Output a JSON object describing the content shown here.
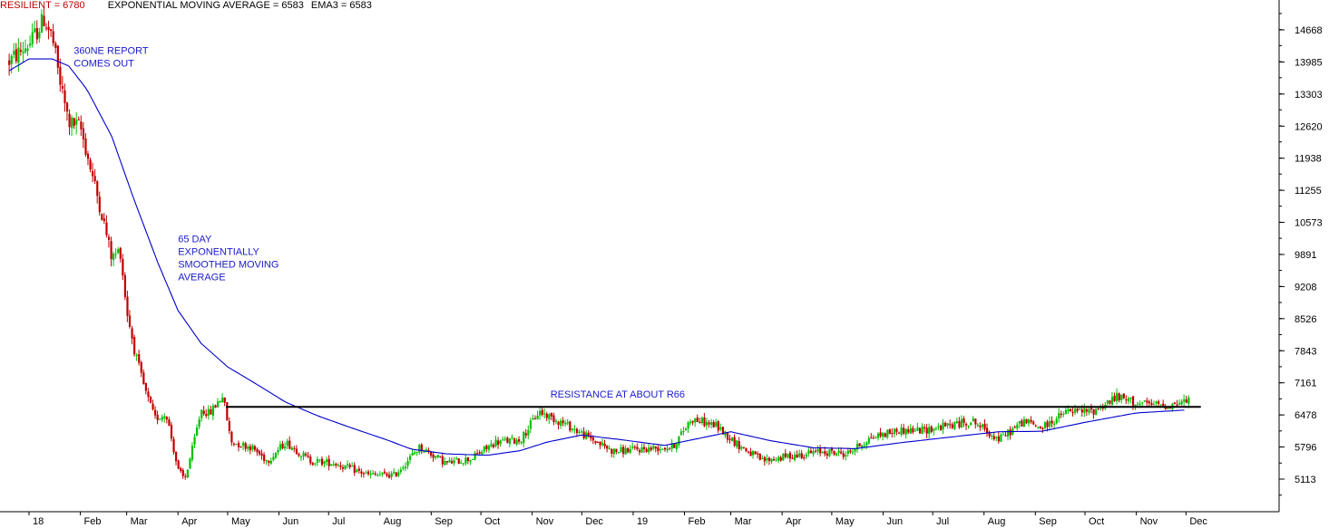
{
  "header": {
    "stock_label": "RESILIENT = 6780",
    "ema_label": "EXPONENTIAL MOVING AVERAGE = 6583",
    "ema3_label": "EMA3 = 6583"
  },
  "colors": {
    "up_candle": "#00c000",
    "down_candle": "#c00000",
    "ema_line": "#0000cc",
    "resistance_line": "#000000",
    "annotation_text": "#1a1acc",
    "header_stock": "#c00000",
    "header_ema": "#000000",
    "header_ema3": "#000000"
  },
  "chart_data": {
    "type": "candlestick",
    "title": "",
    "xlabel": "",
    "ylabel": "",
    "ylim": [
      4800,
      15200
    ],
    "y_ticks": [
      14668,
      13985,
      13303,
      12620,
      11938,
      11255,
      10573,
      9891,
      9208,
      8526,
      7843,
      7161,
      6478,
      5796,
      5113
    ],
    "x_ticks": [
      "18",
      "Feb",
      "Mar",
      "Apr",
      "May",
      "Jun",
      "Jul",
      "Aug",
      "Sep",
      "Oct",
      "Nov",
      "Dec",
      "19",
      "Feb",
      "Mar",
      "Apr",
      "May",
      "Jun",
      "Jul",
      "Aug",
      "Sep",
      "Oct",
      "Nov",
      "Dec"
    ],
    "x_tick_dates": [
      "2018-01-01",
      "2018-02-01",
      "2018-03-01",
      "2018-04-01",
      "2018-05-01",
      "2018-06-01",
      "2018-07-01",
      "2018-08-01",
      "2018-09-01",
      "2018-10-01",
      "2018-11-01",
      "2018-12-01",
      "2019-01-01",
      "2019-02-01",
      "2019-03-01",
      "2019-04-01",
      "2019-05-01",
      "2019-06-01",
      "2019-07-01",
      "2019-08-01",
      "2019-09-01",
      "2019-10-01",
      "2019-11-01",
      "2019-12-01"
    ],
    "price_path": [
      {
        "date": "2017-12-20",
        "value": 14000
      },
      {
        "date": "2018-01-02",
        "value": 14400
      },
      {
        "date": "2018-01-10",
        "value": 14900
      },
      {
        "date": "2018-01-15",
        "value": 14500
      },
      {
        "date": "2018-01-20",
        "value": 13500
      },
      {
        "date": "2018-01-25",
        "value": 12700
      },
      {
        "date": "2018-02-01",
        "value": 12600
      },
      {
        "date": "2018-02-08",
        "value": 11600
      },
      {
        "date": "2018-02-15",
        "value": 10600
      },
      {
        "date": "2018-02-20",
        "value": 9800
      },
      {
        "date": "2018-02-25",
        "value": 10000
      },
      {
        "date": "2018-03-01",
        "value": 8700
      },
      {
        "date": "2018-03-06",
        "value": 7800
      },
      {
        "date": "2018-03-12",
        "value": 7000
      },
      {
        "date": "2018-03-18",
        "value": 6400
      },
      {
        "date": "2018-03-25",
        "value": 6500
      },
      {
        "date": "2018-04-01",
        "value": 5300
      },
      {
        "date": "2018-04-05",
        "value": 5100
      },
      {
        "date": "2018-04-10",
        "value": 5800
      },
      {
        "date": "2018-04-15",
        "value": 6600
      },
      {
        "date": "2018-04-20",
        "value": 6500
      },
      {
        "date": "2018-04-28",
        "value": 6900
      },
      {
        "date": "2018-05-03",
        "value": 5900
      },
      {
        "date": "2018-05-15",
        "value": 5800
      },
      {
        "date": "2018-05-25",
        "value": 5500
      },
      {
        "date": "2018-06-05",
        "value": 5900
      },
      {
        "date": "2018-06-20",
        "value": 5500
      },
      {
        "date": "2018-07-05",
        "value": 5450
      },
      {
        "date": "2018-07-25",
        "value": 5200
      },
      {
        "date": "2018-08-10",
        "value": 5200
      },
      {
        "date": "2018-08-25",
        "value": 5800
      },
      {
        "date": "2018-09-10",
        "value": 5450
      },
      {
        "date": "2018-09-25",
        "value": 5550
      },
      {
        "date": "2018-10-10",
        "value": 5900
      },
      {
        "date": "2018-10-25",
        "value": 5950
      },
      {
        "date": "2018-11-05",
        "value": 6550
      },
      {
        "date": "2018-11-20",
        "value": 6300
      },
      {
        "date": "2018-12-05",
        "value": 6000
      },
      {
        "date": "2018-12-20",
        "value": 5700
      },
      {
        "date": "2019-01-05",
        "value": 5750
      },
      {
        "date": "2019-01-25",
        "value": 5800
      },
      {
        "date": "2019-02-05",
        "value": 6400
      },
      {
        "date": "2019-02-20",
        "value": 6250
      },
      {
        "date": "2019-03-05",
        "value": 5850
      },
      {
        "date": "2019-03-20",
        "value": 5500
      },
      {
        "date": "2019-04-05",
        "value": 5600
      },
      {
        "date": "2019-04-25",
        "value": 5700
      },
      {
        "date": "2019-05-10",
        "value": 5650
      },
      {
        "date": "2019-05-25",
        "value": 6000
      },
      {
        "date": "2019-06-10",
        "value": 6150
      },
      {
        "date": "2019-06-25",
        "value": 6150
      },
      {
        "date": "2019-07-10",
        "value": 6250
      },
      {
        "date": "2019-07-25",
        "value": 6350
      },
      {
        "date": "2019-08-10",
        "value": 5950
      },
      {
        "date": "2019-08-25",
        "value": 6350
      },
      {
        "date": "2019-09-05",
        "value": 6200
      },
      {
        "date": "2019-09-20",
        "value": 6550
      },
      {
        "date": "2019-10-05",
        "value": 6550
      },
      {
        "date": "2019-10-20",
        "value": 6850
      },
      {
        "date": "2019-11-05",
        "value": 6700
      },
      {
        "date": "2019-11-20",
        "value": 6680
      },
      {
        "date": "2019-12-03",
        "value": 6780
      }
    ],
    "ema_series": [
      {
        "date": "2017-12-20",
        "value": 13800
      },
      {
        "date": "2018-01-01",
        "value": 14050
      },
      {
        "date": "2018-01-15",
        "value": 14050
      },
      {
        "date": "2018-01-25",
        "value": 13900
      },
      {
        "date": "2018-02-05",
        "value": 13400
      },
      {
        "date": "2018-02-20",
        "value": 12400
      },
      {
        "date": "2018-03-05",
        "value": 11100
      },
      {
        "date": "2018-03-20",
        "value": 9700
      },
      {
        "date": "2018-04-01",
        "value": 8700
      },
      {
        "date": "2018-04-15",
        "value": 8000
      },
      {
        "date": "2018-05-01",
        "value": 7500
      },
      {
        "date": "2018-05-20",
        "value": 7100
      },
      {
        "date": "2018-06-05",
        "value": 6750
      },
      {
        "date": "2018-06-25",
        "value": 6450
      },
      {
        "date": "2018-07-15",
        "value": 6200
      },
      {
        "date": "2018-08-05",
        "value": 5950
      },
      {
        "date": "2018-08-20",
        "value": 5750
      },
      {
        "date": "2018-09-10",
        "value": 5650
      },
      {
        "date": "2018-10-05",
        "value": 5620
      },
      {
        "date": "2018-10-25",
        "value": 5720
      },
      {
        "date": "2018-11-10",
        "value": 5900
      },
      {
        "date": "2018-12-01",
        "value": 6050
      },
      {
        "date": "2018-12-25",
        "value": 5950
      },
      {
        "date": "2019-01-20",
        "value": 5830
      },
      {
        "date": "2019-02-10",
        "value": 5980
      },
      {
        "date": "2019-03-01",
        "value": 6120
      },
      {
        "date": "2019-03-25",
        "value": 5930
      },
      {
        "date": "2019-04-20",
        "value": 5780
      },
      {
        "date": "2019-05-15",
        "value": 5760
      },
      {
        "date": "2019-06-10",
        "value": 5880
      },
      {
        "date": "2019-07-10",
        "value": 6000
      },
      {
        "date": "2019-08-10",
        "value": 6120
      },
      {
        "date": "2019-09-05",
        "value": 6130
      },
      {
        "date": "2019-10-01",
        "value": 6320
      },
      {
        "date": "2019-11-01",
        "value": 6520
      },
      {
        "date": "2019-12-01",
        "value": 6583
      }
    ],
    "resistance": {
      "value": 6650,
      "start": "2018-04-30",
      "end": "2019-12-10"
    },
    "annotations": [
      {
        "lines": [
          "360NE REPORT",
          "COMES OUT"
        ],
        "date": "2018-01-28",
        "value": 14160
      },
      {
        "lines": [
          "65 DAY",
          "EXPONENTIALLY",
          "SMOOTHED MOVING",
          "AVERAGE"
        ],
        "date": "2018-04-01",
        "value": 10150
      },
      {
        "lines": [
          "RESISTANCE AT ABOUT R66"
        ],
        "date": "2018-11-12",
        "value": 6850
      }
    ]
  }
}
